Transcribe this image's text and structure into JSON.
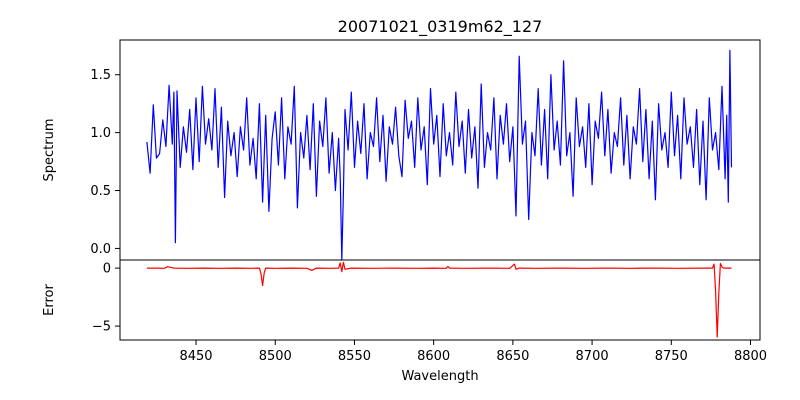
{
  "chart_data": [
    {
      "type": "line",
      "title": "20071021_0319m62_127",
      "xlabel": "",
      "ylabel": "Spectrum",
      "xlim": [
        8402,
        8806
      ],
      "ylim": [
        -0.1,
        1.8
      ],
      "yticks": [
        0.0,
        0.5,
        1.0,
        1.5
      ],
      "ytick_labels": [
        "0.0",
        "0.5",
        "1.0",
        "1.5"
      ],
      "grid": false,
      "color": "#0000ff",
      "series": [
        {
          "x": [
            8419,
            8421,
            8423,
            8425,
            8427,
            8429,
            8431,
            8433,
            8435,
            8436,
            8437,
            8438,
            8440,
            8442,
            8444,
            8446,
            8448,
            8450,
            8452,
            8454,
            8456,
            8458,
            8460,
            8462,
            8464,
            8466,
            8468,
            8470,
            8472,
            8474,
            8476,
            8478,
            8480,
            8482,
            8484,
            8486,
            8488,
            8490,
            8492,
            8494,
            8496,
            8498,
            8500,
            8502,
            8504,
            8506,
            8508,
            8510,
            8512,
            8514,
            8516,
            8518,
            8520,
            8522,
            8524,
            8526,
            8528,
            8530,
            8532,
            8534,
            8536,
            8538,
            8540,
            8541,
            8542,
            8543,
            8544,
            8546,
            8548,
            8550,
            8552,
            8554,
            8556,
            8558,
            8560,
            8562,
            8564,
            8566,
            8568,
            8570,
            8572,
            8574,
            8576,
            8578,
            8580,
            8582,
            8584,
            8586,
            8588,
            8590,
            8592,
            8594,
            8596,
            8598,
            8600,
            8602,
            8604,
            8606,
            8608,
            8610,
            8612,
            8614,
            8616,
            8618,
            8620,
            8622,
            8624,
            8626,
            8628,
            8630,
            8632,
            8634,
            8636,
            8638,
            8640,
            8642,
            8644,
            8646,
            8648,
            8650,
            8652,
            8654,
            8656,
            8658,
            8660,
            8662,
            8664,
            8666,
            8668,
            8670,
            8672,
            8674,
            8676,
            8678,
            8680,
            8682,
            8684,
            8686,
            8688,
            8690,
            8692,
            8694,
            8696,
            8698,
            8700,
            8702,
            8704,
            8706,
            8708,
            8710,
            8712,
            8714,
            8716,
            8718,
            8720,
            8722,
            8724,
            8726,
            8728,
            8730,
            8732,
            8734,
            8736,
            8738,
            8740,
            8742,
            8744,
            8746,
            8748,
            8750,
            8752,
            8754,
            8756,
            8758,
            8760,
            8762,
            8764,
            8766,
            8768,
            8770,
            8772,
            8774,
            8776,
            8778,
            8780,
            8782,
            8784,
            8785,
            8786,
            8787,
            8788
          ],
          "y": [
            0.92,
            0.65,
            1.24,
            0.78,
            0.82,
            1.11,
            0.88,
            1.41,
            0.9,
            1.35,
            0.05,
            1.36,
            0.7,
            1.05,
            0.83,
            1.2,
            0.68,
            1.3,
            0.75,
            1.4,
            0.9,
            1.12,
            0.85,
            1.38,
            0.7,
            1.22,
            0.44,
            1.1,
            0.8,
            1.0,
            0.62,
            1.05,
            0.85,
            1.3,
            0.72,
            0.95,
            0.6,
            1.25,
            0.4,
            1.15,
            0.32,
            0.95,
            1.18,
            0.72,
            1.3,
            0.6,
            1.05,
            0.9,
            1.4,
            0.35,
            1.0,
            0.78,
            1.15,
            0.68,
            1.25,
            0.45,
            1.1,
            0.88,
            1.3,
            0.65,
            1.0,
            0.5,
            0.95,
            0.62,
            -0.1,
            0.48,
            1.2,
            0.85,
            1.35,
            0.7,
            1.1,
            0.82,
            1.25,
            0.6,
            1.0,
            0.88,
            1.3,
            0.75,
            1.15,
            0.58,
            1.05,
            0.9,
            1.22,
            0.8,
            0.62,
            1.28,
            0.95,
            1.1,
            0.7,
            1.3,
            0.85,
            1.05,
            0.55,
            1.38,
            0.9,
            1.15,
            0.62,
            1.25,
            0.8,
            1.0,
            0.72,
            1.35,
            0.88,
            1.1,
            0.65,
            1.2,
            0.78,
            1.05,
            0.52,
            1.42,
            0.7,
            1.0,
            0.85,
            1.3,
            0.6,
            1.15,
            0.9,
            1.25,
            0.75,
            1.05,
            0.28,
            1.66,
            0.9,
            1.1,
            0.25,
            1.0,
            0.8,
            1.38,
            0.72,
            1.2,
            0.6,
            1.5,
            0.85,
            1.1,
            0.72,
            1.62,
            0.8,
            1.0,
            0.45,
            1.3,
            0.88,
            1.05,
            0.7,
            1.25,
            0.55,
            1.1,
            0.95,
            1.35,
            0.8,
            1.2,
            0.65,
            1.0,
            0.88,
            1.3,
            0.72,
            1.15,
            0.6,
            1.05,
            0.9,
            1.38,
            0.75,
            1.2,
            0.6,
            1.1,
            0.42,
            1.25,
            0.85,
            1.0,
            0.7,
            1.35,
            0.8,
            1.15,
            0.6,
            1.3,
            0.9,
            1.05,
            0.7,
            1.2,
            0.55,
            1.1,
            0.42,
            1.3,
            0.85,
            1.0,
            0.68,
            1.4,
            0.6,
            1.15,
            0.4,
            1.71,
            0.7
          ]
        }
      ]
    },
    {
      "type": "line",
      "title": "",
      "xlabel": "Wavelength",
      "ylabel": "Error",
      "xlim": [
        8402,
        8806
      ],
      "ylim": [
        -6.2,
        0.7
      ],
      "xticks": [
        8450,
        8500,
        8550,
        8600,
        8650,
        8700,
        8750,
        8800
      ],
      "xtick_labels": [
        "8450",
        "8500",
        "8550",
        "8600",
        "8650",
        "8700",
        "8750",
        "8800"
      ],
      "yticks": [
        0,
        -5
      ],
      "ytick_labels": [
        "0",
        "−5"
      ],
      "grid": false,
      "color": "#ff0000",
      "series": [
        {
          "x": [
            8419,
            8425,
            8430,
            8432,
            8436,
            8445,
            8455,
            8465,
            8475,
            8485,
            8490,
            8491,
            8492,
            8493,
            8494,
            8500,
            8510,
            8520,
            8523,
            8526,
            8535,
            8540,
            8541,
            8542,
            8543,
            8544,
            8548,
            8560,
            8575,
            8590,
            8600,
            8608,
            8609,
            8610,
            8620,
            8635,
            8648,
            8651,
            8652,
            8654,
            8665,
            8680,
            8695,
            8710,
            8725,
            8740,
            8755,
            8770,
            8776,
            8777,
            8778,
            8779,
            8780,
            8781,
            8782,
            8783,
            8784,
            8786,
            8788
          ],
          "y": [
            0.0,
            0.0,
            -0.02,
            0.12,
            0.0,
            -0.02,
            0.0,
            -0.02,
            0.0,
            -0.02,
            0.0,
            -0.5,
            -1.5,
            -0.4,
            0.0,
            -0.02,
            0.0,
            -0.02,
            -0.2,
            0.0,
            -0.02,
            0.0,
            0.45,
            -0.3,
            0.5,
            -0.1,
            0.0,
            -0.02,
            0.0,
            -0.02,
            0.0,
            -0.02,
            0.15,
            0.0,
            -0.02,
            0.0,
            -0.02,
            0.35,
            -0.1,
            0.0,
            -0.02,
            0.0,
            -0.02,
            0.0,
            -0.02,
            0.0,
            -0.02,
            0.0,
            0.0,
            0.35,
            -2.0,
            -5.95,
            -2.2,
            0.4,
            0.1,
            0.0,
            0.0,
            0.0,
            0.0
          ]
        }
      ]
    }
  ]
}
